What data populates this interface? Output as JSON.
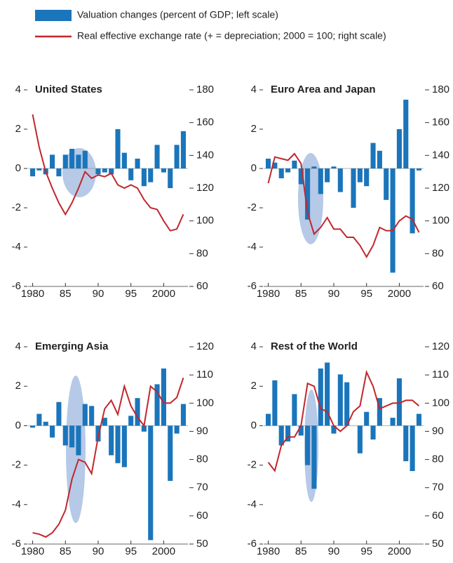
{
  "legend": [
    {
      "label": "Valuation changes (percent of GDP; left scale)",
      "kind": "bar",
      "color": "#1a75bb"
    },
    {
      "label": "Real effective exchange rate (+ = depreciation; 2000 = 100; right scale)",
      "kind": "line",
      "color": "#c1272d"
    }
  ],
  "chart_data": [
    {
      "type": "bar-line",
      "title": "United States",
      "x": [
        1980,
        1981,
        1982,
        1983,
        1984,
        1985,
        1986,
        1987,
        1988,
        1989,
        1990,
        1991,
        1992,
        1993,
        1994,
        1995,
        1996,
        1997,
        1998,
        1999,
        2000,
        2001,
        2002,
        2003
      ],
      "series": [
        {
          "color": "#1a75bb",
          "values": [
            -0.4,
            -0.1,
            -0.3,
            0.7,
            -0.4,
            0.7,
            1.0,
            0.7,
            0.9,
            0.0,
            -0.3,
            -0.2,
            -0.3,
            2.0,
            0.8,
            -0.6,
            0.5,
            -0.9,
            -0.7,
            1.2,
            -0.2,
            -1.0,
            1.2,
            1.9
          ]
        },
        {
          "color": "#c1272d",
          "axis": "y2",
          "values": [
            165,
            145,
            130,
            120,
            111,
            104,
            111,
            120,
            130,
            126,
            128,
            127,
            129,
            122,
            120,
            122,
            120,
            113,
            108,
            107,
            100,
            94,
            95,
            104
          ]
        }
      ],
      "xlim": [
        1979.3,
        2003.7
      ],
      "xticks": [
        {
          "value": 1980,
          "label": "1980"
        },
        {
          "value": 1985,
          "label": "85"
        },
        {
          "value": 1990,
          "label": "90"
        },
        {
          "value": 1995,
          "label": "95"
        },
        {
          "value": 2000,
          "label": "2000"
        }
      ],
      "ylim": [
        -6,
        4
      ],
      "yticks": [
        -6,
        -4,
        -2,
        0,
        2,
        4
      ],
      "y2lim": [
        60,
        180
      ],
      "y2ticks": [
        60,
        80,
        100,
        120,
        140,
        160,
        180
      ]
    },
    {
      "type": "bar-line",
      "title": "Euro Area and Japan",
      "x": [
        1980,
        1981,
        1982,
        1983,
        1984,
        1985,
        1986,
        1987,
        1988,
        1989,
        1990,
        1991,
        1992,
        1993,
        1994,
        1995,
        1996,
        1997,
        1998,
        1999,
        2000,
        2001,
        2002,
        2003
      ],
      "series": [
        {
          "color": "#1a75bb",
          "values": [
            0.5,
            0.3,
            -0.5,
            -0.2,
            0.4,
            -0.8,
            -2.6,
            0.1,
            -1.3,
            -0.7,
            0.1,
            -1.2,
            0.0,
            -2.0,
            -0.7,
            -0.9,
            1.3,
            0.9,
            -1.6,
            -5.3,
            2.0,
            3.5,
            -3.3,
            -0.1
          ]
        },
        {
          "color": "#c1272d",
          "axis": "y2",
          "values": [
            123,
            139,
            138,
            137,
            141,
            135,
            105,
            92,
            96,
            102,
            95,
            95,
            90,
            90,
            85,
            78,
            85,
            96,
            94,
            94,
            100,
            103,
            101,
            93
          ]
        }
      ],
      "xlim": [
        1979.3,
        2003.7
      ],
      "xticks": [
        {
          "value": 1980,
          "label": "1980"
        },
        {
          "value": 1985,
          "label": "85"
        },
        {
          "value": 1990,
          "label": "90"
        },
        {
          "value": 1995,
          "label": "95"
        },
        {
          "value": 2000,
          "label": "2000"
        }
      ],
      "ylim": [
        -6,
        4
      ],
      "yticks": [
        -6,
        -4,
        -2,
        0,
        2,
        4
      ],
      "y2lim": [
        60,
        180
      ],
      "y2ticks": [
        60,
        80,
        100,
        120,
        140,
        160,
        180
      ]
    },
    {
      "type": "bar-line",
      "title": "Emerging Asia",
      "x": [
        1980,
        1981,
        1982,
        1983,
        1984,
        1985,
        1986,
        1987,
        1988,
        1989,
        1990,
        1991,
        1992,
        1993,
        1994,
        1995,
        1996,
        1997,
        1998,
        1999,
        2000,
        2001,
        2002,
        2003
      ],
      "series": [
        {
          "color": "#1a75bb",
          "values": [
            -0.1,
            0.6,
            0.2,
            -0.6,
            1.2,
            -1.0,
            -1.1,
            -1.5,
            1.1,
            1.0,
            -0.8,
            0.4,
            -1.5,
            -1.9,
            -2.1,
            0.5,
            1.4,
            -0.3,
            -5.8,
            2.1,
            2.9,
            -2.8,
            -0.4,
            1.1
          ]
        },
        {
          "color": "#c1272d",
          "axis": "y2",
          "values": [
            54,
            53.5,
            52.5,
            54,
            57,
            62,
            73,
            80,
            79,
            75,
            88,
            98,
            101,
            96,
            106,
            99,
            95,
            92,
            106,
            104,
            100,
            100,
            102,
            109
          ]
        }
      ],
      "xlim": [
        1979.3,
        2003.7
      ],
      "xticks": [
        {
          "value": 1980,
          "label": "1980"
        },
        {
          "value": 1985,
          "label": "85"
        },
        {
          "value": 1990,
          "label": "90"
        },
        {
          "value": 1995,
          "label": "95"
        },
        {
          "value": 2000,
          "label": "2000"
        }
      ],
      "ylim": [
        -6,
        4
      ],
      "yticks": [
        -6,
        -4,
        -2,
        0,
        2,
        4
      ],
      "y2lim": [
        50,
        120
      ],
      "y2ticks": [
        50,
        60,
        70,
        80,
        90,
        100,
        110,
        120
      ]
    },
    {
      "type": "bar-line",
      "title": "Rest of the World",
      "x": [
        1980,
        1981,
        1982,
        1983,
        1984,
        1985,
        1986,
        1987,
        1988,
        1989,
        1990,
        1991,
        1992,
        1993,
        1994,
        1995,
        1996,
        1997,
        1998,
        1999,
        2000,
        2001,
        2002,
        2003
      ],
      "series": [
        {
          "color": "#1a75bb",
          "values": [
            0.6,
            2.3,
            -1.0,
            -0.8,
            1.6,
            -0.5,
            -2.0,
            -3.2,
            2.9,
            3.2,
            -0.4,
            2.6,
            2.2,
            0.0,
            -1.4,
            0.7,
            -0.7,
            1.4,
            0.0,
            0.4,
            2.4,
            -1.8,
            -2.3,
            0.6
          ]
        },
        {
          "color": "#c1272d",
          "axis": "y2",
          "values": [
            79,
            76,
            85,
            88,
            88,
            92,
            107,
            106,
            98,
            97,
            92,
            90,
            92,
            97,
            99,
            111,
            106,
            98,
            99,
            100,
            100,
            101,
            101,
            99
          ]
        }
      ],
      "xlim": [
        1979.3,
        2003.7
      ],
      "xticks": [
        {
          "value": 1980,
          "label": "1980"
        },
        {
          "value": 1985,
          "label": "85"
        },
        {
          "value": 1990,
          "label": "90"
        },
        {
          "value": 1995,
          "label": "95"
        },
        {
          "value": 2000,
          "label": "2000"
        }
      ],
      "ylim": [
        -6,
        4
      ],
      "yticks": [
        -6,
        -4,
        -2,
        0,
        2,
        4
      ],
      "y2lim": [
        50,
        120
      ],
      "y2ticks": [
        50,
        60,
        70,
        80,
        90,
        100,
        110,
        120
      ]
    }
  ]
}
